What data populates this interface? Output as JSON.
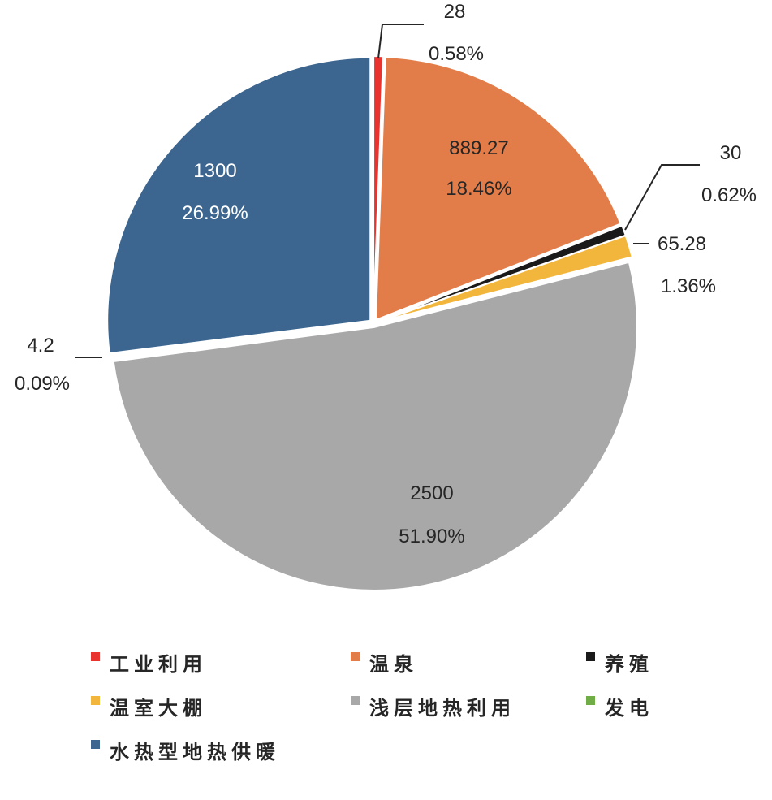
{
  "chart_data": {
    "type": "pie",
    "title": "",
    "legend_placement": "bottom",
    "slices": [
      {
        "name": "工业利用",
        "value": 28,
        "percent_label": "0.58%",
        "value_label": "28",
        "color": "#e8332f"
      },
      {
        "name": "温泉",
        "value": 889.27,
        "percent_label": "18.46%",
        "value_label": "889.27",
        "color": "#e27d4a"
      },
      {
        "name": "养殖",
        "value": 30,
        "percent_label": "0.62%",
        "value_label": "30",
        "color": "#1a1a1a"
      },
      {
        "name": "温室大棚",
        "value": 65.28,
        "percent_label": "1.36%",
        "value_label": "65.28",
        "color": "#f2b63c"
      },
      {
        "name": "浅层地热利用",
        "value": 2500,
        "percent_label": "51.90%",
        "value_label": "2500",
        "color": "#a9a8a9"
      },
      {
        "name": "发电",
        "value": 4.2,
        "percent_label": "0.09%",
        "value_label": "4.2",
        "color": "#70ad47"
      },
      {
        "name": "水热型地热供暖",
        "value": 1300,
        "percent_label": "26.99%",
        "value_label": "1300",
        "color": "#3c668f"
      }
    ]
  }
}
